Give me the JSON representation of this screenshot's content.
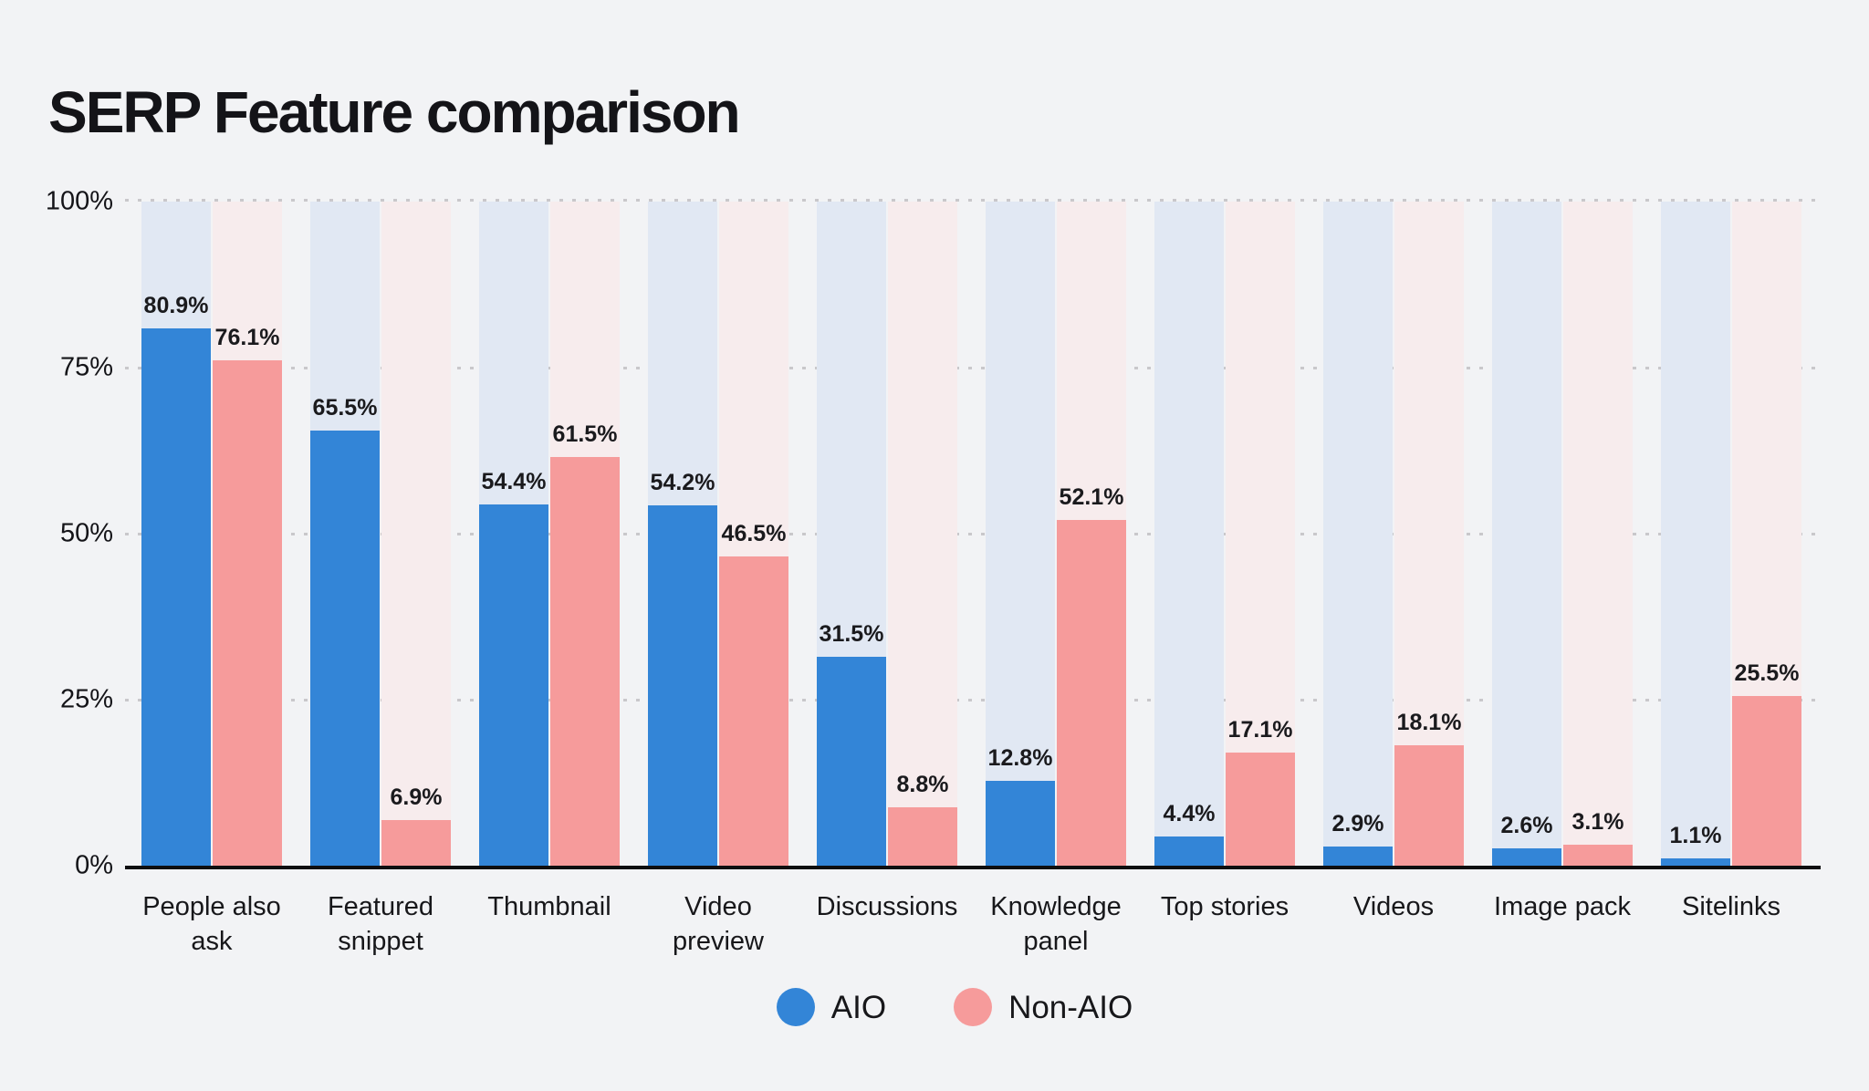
{
  "page": {
    "background_color": "#f2f3f5",
    "text_color": "#17171a"
  },
  "chart_data": {
    "type": "bar",
    "title": "SERP Feature comparison",
    "categories": [
      "People also\nask",
      "Featured\nsnippet",
      "Thumbnail",
      "Video\npreview",
      "Discussions",
      "Knowledge\npanel",
      "Top stories",
      "Videos",
      "Image pack",
      "Sitelinks"
    ],
    "series": [
      {
        "name": "AIO",
        "color": "#3385d7",
        "track_color": "#e1e8f3",
        "values": [
          80.9,
          65.5,
          54.4,
          54.2,
          31.5,
          12.8,
          4.4,
          2.9,
          2.6,
          1.1
        ]
      },
      {
        "name": "Non-AIO",
        "color": "#f69b9b",
        "track_color": "#f7eced",
        "values": [
          76.1,
          6.9,
          61.5,
          46.5,
          8.8,
          52.1,
          17.1,
          18.1,
          3.1,
          25.5
        ]
      }
    ],
    "value_suffix": "%",
    "xlabel": "",
    "ylabel": "",
    "ylim": [
      0,
      100
    ],
    "yticks": [
      100,
      75,
      50,
      25,
      0
    ],
    "ytick_suffix": "%",
    "grid": "dotted horizontal, 25% steps",
    "gridline_color": "#c9c8cb",
    "axis_color": "#0e0e10",
    "legend_position": "bottom center"
  }
}
